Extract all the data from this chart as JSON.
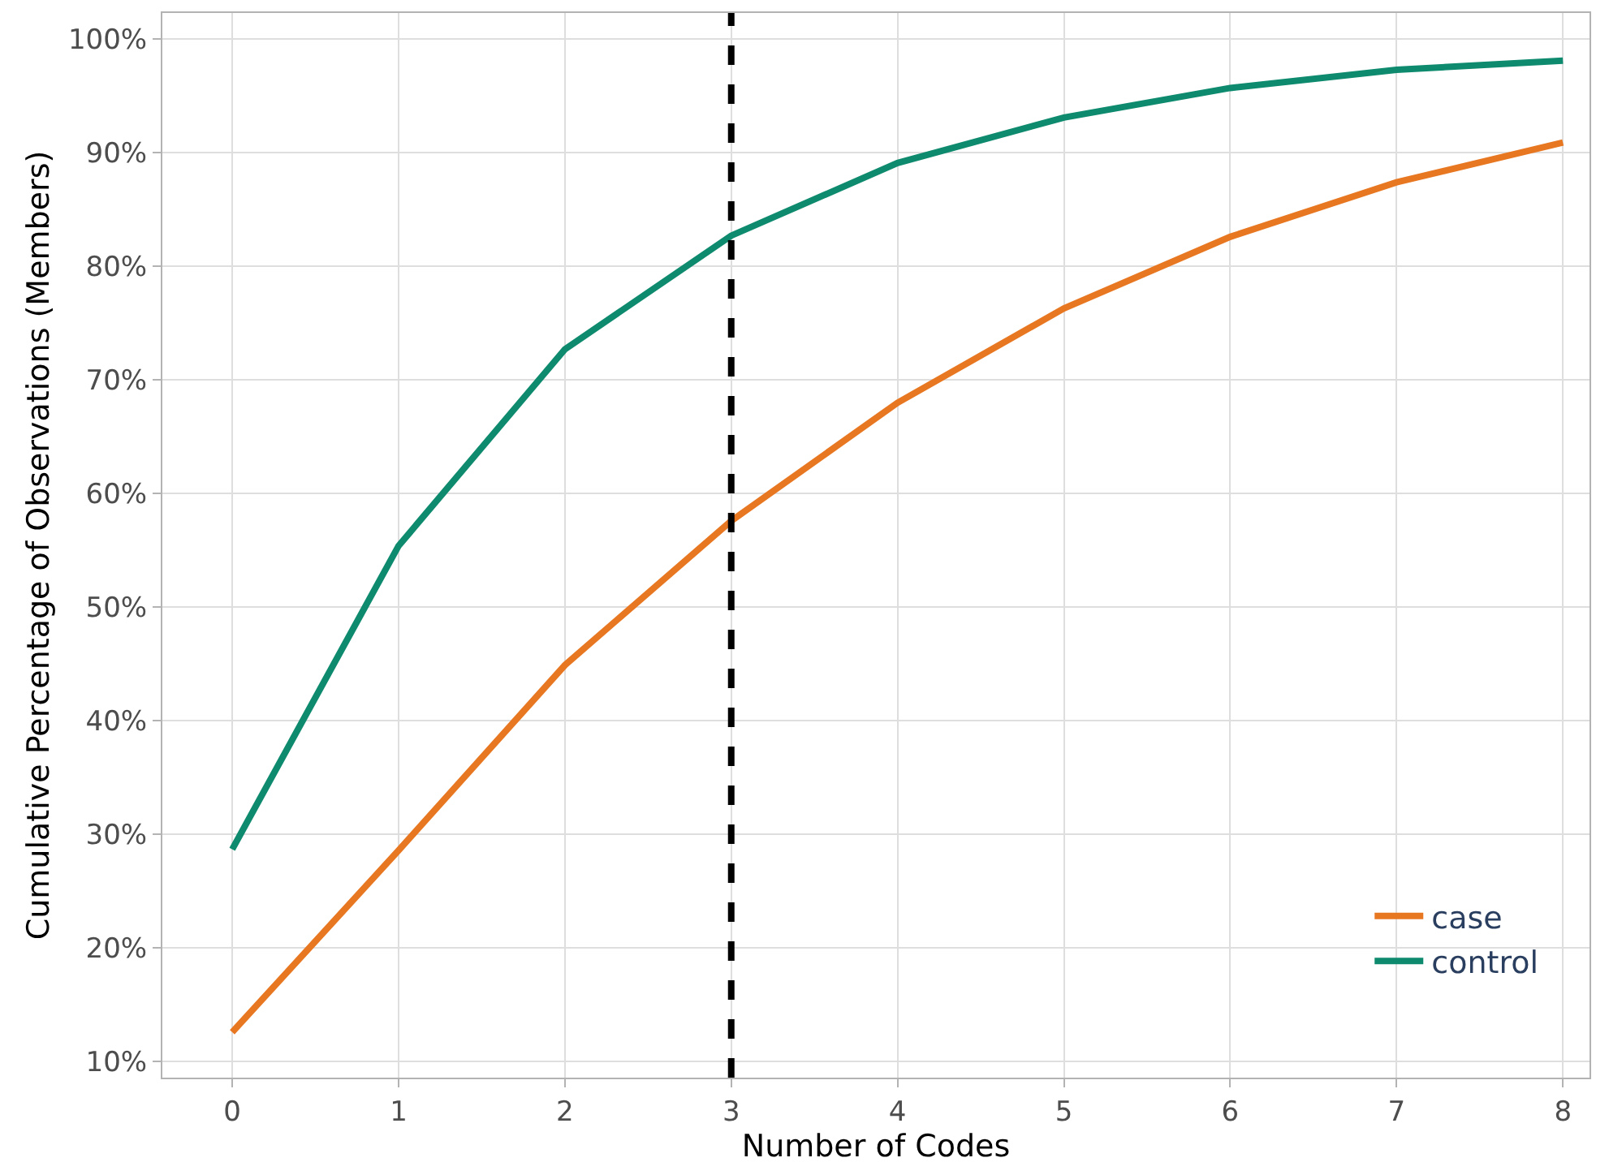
{
  "chart_data": {
    "type": "line",
    "xlabel": "Number of Codes",
    "ylabel": "Cumulative Percentage of Observations (Members)",
    "x": [
      0,
      1,
      2,
      3,
      4,
      5,
      6,
      7,
      8
    ],
    "series": [
      {
        "name": "case",
        "color": "#e87722",
        "values": [
          12.6,
          28.6,
          44.9,
          57.6,
          68.0,
          76.3,
          82.6,
          87.4,
          90.9
        ]
      },
      {
        "name": "control",
        "color": "#0e8a6e",
        "values": [
          28.7,
          55.4,
          72.7,
          82.7,
          89.1,
          93.1,
          95.7,
          97.3,
          98.1
        ]
      }
    ],
    "xlim": [
      -0.42,
      8.16
    ],
    "xticks": [
      0,
      1,
      2,
      3,
      4,
      5,
      6,
      7,
      8
    ],
    "ylim": [
      8.6,
      102.3
    ],
    "yticks": [
      {
        "value": 10,
        "label": "10%"
      },
      {
        "value": 20,
        "label": "20%"
      },
      {
        "value": 30,
        "label": "30%"
      },
      {
        "value": 40,
        "label": "40%"
      },
      {
        "value": 50,
        "label": "50%"
      },
      {
        "value": 60,
        "label": "60%"
      },
      {
        "value": 70,
        "label": "70%"
      },
      {
        "value": 80,
        "label": "80%"
      },
      {
        "value": 90,
        "label": "90%"
      },
      {
        "value": 100,
        "label": "100%"
      }
    ],
    "ref_lines": [
      {
        "axis": "x",
        "value": 3,
        "color": "#000000",
        "line_style": "dashed"
      }
    ],
    "grid": true,
    "legend": "bottom right",
    "marker": "none",
    "line_style": "solid"
  }
}
